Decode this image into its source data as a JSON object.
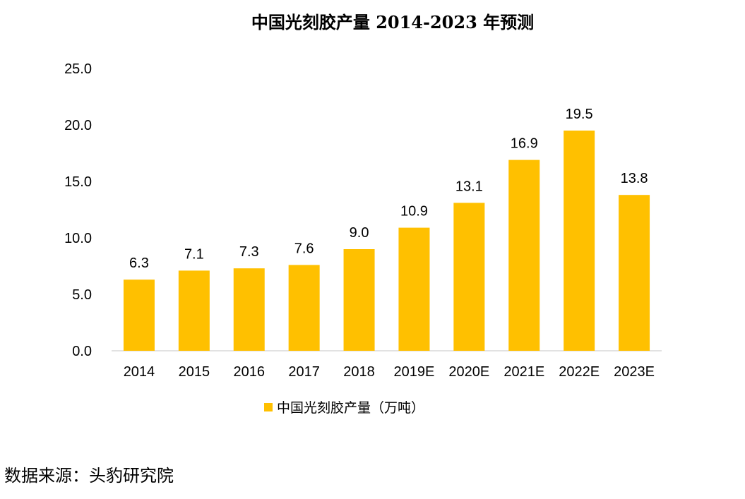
{
  "chart_data": {
    "type": "bar",
    "title": "中国光刻胶产量 2014-2023 年预测",
    "categories": [
      "2014",
      "2015",
      "2016",
      "2017",
      "2018",
      "2019E",
      "2020E",
      "2021E",
      "2022E",
      "2023E"
    ],
    "series": [
      {
        "name": "中国光刻胶产量（万吨）",
        "values": [
          6.3,
          7.1,
          7.3,
          7.6,
          9.0,
          10.9,
          13.1,
          16.9,
          19.5,
          13.8
        ],
        "labels": [
          "6.3",
          "7.1",
          "7.3",
          "7.6",
          "9.0",
          "10.9",
          "13.1",
          "16.9",
          "19.5",
          "13.8"
        ],
        "color": "#FFC000"
      }
    ],
    "y_ticks": [
      "0.0",
      "5.0",
      "10.0",
      "15.0",
      "20.0",
      "25.0"
    ],
    "ylim": [
      0,
      25
    ],
    "grid": false,
    "legend_position": "bottom"
  },
  "source": "数据来源：头豹研究院"
}
